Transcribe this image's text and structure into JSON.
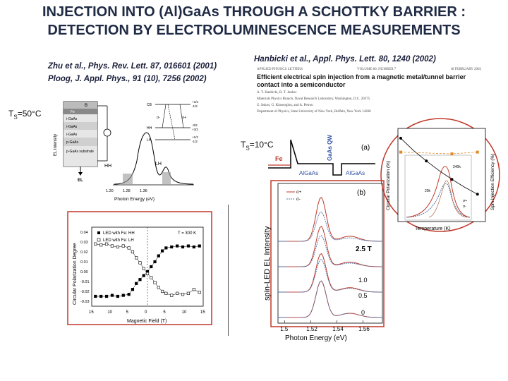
{
  "slide": {
    "title_line1": "INJECTION INTO (Al)GaAs THROUGH A SCHOTTKY BARRIER :",
    "title_line2": "DETECTION BY ELECTROLUMINESCENCE MEASUREMENTS"
  },
  "citations": {
    "zhu": "Zhu et al., Phys. Rev. Lett. 87, 016601 (2001)",
    "ploog": "Ploog, J. Appl. Phys., 91 (10), 7256 (2002)",
    "hanbicki": "Hanbicki et al., Appl. Phys. Lett. 80, 1240 (2002)"
  },
  "temps": {
    "left": {
      "prefix": "T",
      "sub": "S",
      "suffix": "=50°C"
    },
    "right": {
      "prefix": "T",
      "sub": "S",
      "suffix": "=10°C"
    }
  },
  "paper_header": {
    "journal": "APPLIED PHYSICS LETTERS",
    "volume": "VOLUME 80, NUMBER 7",
    "date": "18 FEBRUARY 2002",
    "title": "Efficient electrical spin injection from a magnetic metal/tunnel barrier contact into a semiconductor",
    "authors1": "A. T. Hanbicki, B. T. Jonker",
    "affil1": "Materials Physics Branch, Naval Research Laboratory, Washington, D.C. 20375",
    "authors2": "G. Itskos, G. Kioseoglou, and A. Petrou",
    "affil2": "Department of Physics, State University of New York, Buffalo, New York 14260"
  },
  "device": {
    "layers": [
      "B",
      "Fe",
      "i-GaAs",
      "i-GaAs",
      "i-GaAs",
      "p-GaAs",
      "p-GaAs substrate"
    ],
    "el_label": "EL",
    "x_axis_ticks": [
      "1.20",
      "1.28",
      "1.36"
    ],
    "x_axis_label": "Photon Energy (eV)",
    "y_axis_label": "EL Intensity",
    "peak_labels": [
      "HH",
      "LH"
    ],
    "level_labels": [
      "CB",
      "HH",
      "LH",
      "σ-",
      "σ+"
    ],
    "spin_values": [
      "+1/2",
      "-1/2",
      "-3/2",
      "+3/2",
      "+1/2",
      "-1/2"
    ]
  },
  "chart_data": [
    {
      "type": "scatter",
      "title": "",
      "xlabel": "Magnetic Field (T)",
      "ylabel": "Circular Polarization Degree",
      "x_ticks": [
        "15",
        "10",
        "5",
        "0",
        "5",
        "10",
        "15"
      ],
      "y_ticks": [
        "0.04",
        "0.03",
        "0.02",
        "0.01",
        "0.00",
        "-0.01",
        "-0.02",
        "-0.03"
      ],
      "xlim": [
        -15,
        15
      ],
      "ylim": [
        -0.035,
        0.045
      ],
      "legend": [
        "LED with Fe: HH",
        "LED with Fe: LH"
      ],
      "annotation": "T = 300 K",
      "series": [
        {
          "name": "LED with Fe: HH",
          "marker": "filled-square",
          "x": [
            -14,
            -12.5,
            -11,
            -9.5,
            -8,
            -6.5,
            -5,
            -4,
            -3,
            -2,
            -1,
            0,
            1,
            2,
            3,
            4,
            5,
            6.5,
            8,
            9.5,
            11,
            12.5,
            14
          ],
          "y": [
            -0.025,
            -0.025,
            -0.025,
            -0.024,
            -0.025,
            -0.024,
            -0.023,
            -0.018,
            -0.012,
            -0.008,
            -0.004,
            0.0,
            0.005,
            0.01,
            0.016,
            0.021,
            0.024,
            0.025,
            0.026,
            0.025,
            0.026,
            0.025,
            0.026
          ]
        },
        {
          "name": "LED with Fe: LH",
          "marker": "open-square",
          "x": [
            -14,
            -12.5,
            -11,
            -9.5,
            -8,
            -6.5,
            -5,
            -4,
            -3,
            -2,
            -1,
            0,
            1,
            2,
            3,
            4,
            5,
            6.5,
            8,
            9.5,
            11,
            12.5,
            14
          ],
          "y": [
            0.028,
            0.027,
            0.028,
            0.026,
            0.025,
            0.026,
            0.024,
            0.02,
            0.014,
            0.009,
            0.003,
            -0.002,
            -0.006,
            -0.011,
            -0.016,
            -0.02,
            -0.022,
            -0.024,
            -0.022,
            -0.023,
            -0.022,
            -0.018,
            -0.021
          ]
        }
      ]
    },
    {
      "type": "line",
      "title": "",
      "xlabel": "Photon Energy (eV)",
      "ylabel": "spin-LED EL Intensity",
      "x_ticks": [
        "1.5",
        "1.52",
        "1.54",
        "1.56"
      ],
      "xlim": [
        1.495,
        1.575
      ],
      "panel_label": "(b)",
      "legend": [
        "σ+",
        "σ-"
      ],
      "field_labels": [
        "2.5 T",
        "1.0",
        "0.5",
        "0"
      ],
      "series": [
        {
          "name": "σ+",
          "field": "2.5 T",
          "offset": 3.0,
          "peak": 1.2
        },
        {
          "name": "σ-",
          "field": "2.5 T",
          "offset": 3.0,
          "peak": 0.8
        },
        {
          "name": "σ+",
          "field": "1.0",
          "offset": 2.0,
          "peak": 1.1
        },
        {
          "name": "σ-",
          "field": "1.0",
          "offset": 2.0,
          "peak": 0.85
        },
        {
          "name": "σ+",
          "field": "0.5",
          "offset": 1.0,
          "peak": 1.05
        },
        {
          "name": "σ-",
          "field": "0.5",
          "offset": 1.0,
          "peak": 0.9
        },
        {
          "name": "σ+",
          "field": "0",
          "offset": 0.0,
          "peak": 1.0
        },
        {
          "name": "σ-",
          "field": "0",
          "offset": 0.0,
          "peak": 1.0
        }
      ]
    },
    {
      "type": "line",
      "title": "",
      "xlabel": "Temperature (K)",
      "ylabel": "Circular Polarization (%)",
      "ylabel_right": "Spin Injection Efficiency (%)",
      "inset_labels": [
        "240k",
        "20k",
        "σ+",
        "σ-"
      ],
      "series": [
        {
          "name": "Circular Polarization",
          "x": [
            0,
            25,
            50,
            75,
            100,
            125,
            150
          ],
          "y": [
            92,
            78,
            66,
            55,
            45,
            36,
            28
          ]
        },
        {
          "name": "Spin Injection Efficiency",
          "x": [
            0,
            100,
            150
          ],
          "y": [
            60,
            58,
            60
          ]
        }
      ]
    }
  ],
  "band_diagram": {
    "panel_label": "(a)",
    "labels": [
      "Fe",
      "AlGaAs",
      "GaAs QW",
      "AlGaAs"
    ]
  }
}
